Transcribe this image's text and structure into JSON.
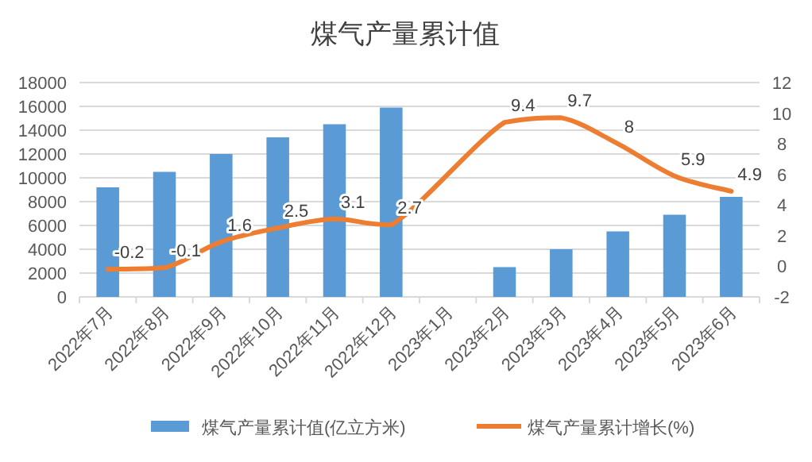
{
  "chart_data": {
    "type": "bar",
    "title": "煤气产量累计值",
    "categories": [
      "2022年7月",
      "2022年8月",
      "2022年9月",
      "2022年10月",
      "2022年11月",
      "2022年12月",
      "2023年1月",
      "2023年2月",
      "2023年3月",
      "2023年4月",
      "2023年5月",
      "2023年6月"
    ],
    "series": [
      {
        "name": "煤气产量累计值(亿立方米)",
        "color": "#5b9bd5",
        "values": [
          9200,
          10500,
          12000,
          13400,
          14500,
          15900,
          null,
          2500,
          4000,
          5500,
          6900,
          8400
        ]
      },
      {
        "name": "煤气产量累计增长(%)",
        "type": "line",
        "axis": "y2",
        "color": "#ed7d31",
        "values": [
          -0.2,
          -0.1,
          1.6,
          2.5,
          3.1,
          2.7,
          null,
          9.4,
          9.7,
          8,
          5.9,
          4.9
        ],
        "value_labels": [
          "-0.2",
          "-0.1",
          "1.6",
          "2.5",
          "3.1",
          "2.7",
          null,
          "9.4",
          "9.7",
          "8",
          "5.9",
          "4.9"
        ]
      }
    ],
    "ylim": [
      0,
      18000
    ],
    "yticks": [
      0,
      2000,
      4000,
      6000,
      8000,
      10000,
      12000,
      14000,
      16000,
      18000
    ],
    "y2lim": [
      -2,
      12
    ],
    "y2ticks": [
      -2,
      0,
      2,
      4,
      6,
      8,
      10,
      12
    ],
    "grid": "y",
    "legend": "bottom"
  }
}
